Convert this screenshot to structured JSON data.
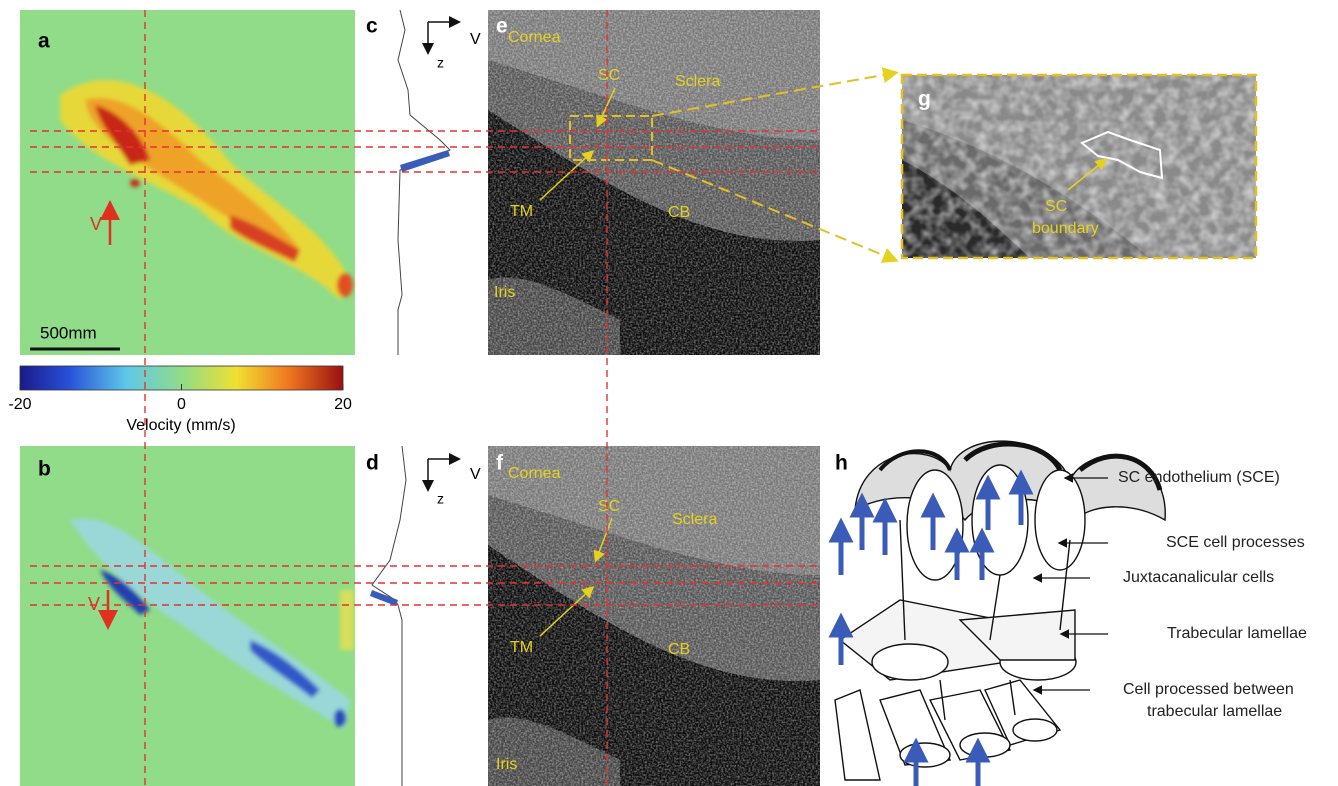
{
  "panels": {
    "a": {
      "label": "a",
      "scale_bar": "500mm",
      "velocity_symbol": "V"
    },
    "b": {
      "label": "b",
      "velocity_symbol": "V"
    },
    "c": {
      "label": "c",
      "axis_v": "V",
      "axis_z": "z"
    },
    "d": {
      "label": "d",
      "axis_v": "V",
      "axis_z": "z"
    },
    "e": {
      "label": "e",
      "cornea": "Cornea",
      "sc": "SC",
      "sclera": "Sclera",
      "tm": "TM",
      "cb": "CB",
      "iris": "Iris"
    },
    "f": {
      "label": "f",
      "cornea": "Cornea",
      "sc": "SC",
      "sclera": "Sclera",
      "tm": "TM",
      "cb": "CB",
      "iris": "Iris"
    },
    "g": {
      "label": "g",
      "annotation_line1": "SC",
      "annotation_line2": "boundary"
    },
    "h": {
      "label": "h",
      "annotations": [
        "SC endothelium (SCE)",
        "SCE cell processes",
        "Juxtacanalicular cells",
        "Trabecular lamellae",
        "Cell processed between",
        "trabecular lamellae"
      ]
    }
  },
  "colorbar": {
    "label": "Velocity (mm/s)",
    "lim": [
      -20,
      20
    ],
    "ticks": [
      -20,
      0,
      20
    ]
  }
}
